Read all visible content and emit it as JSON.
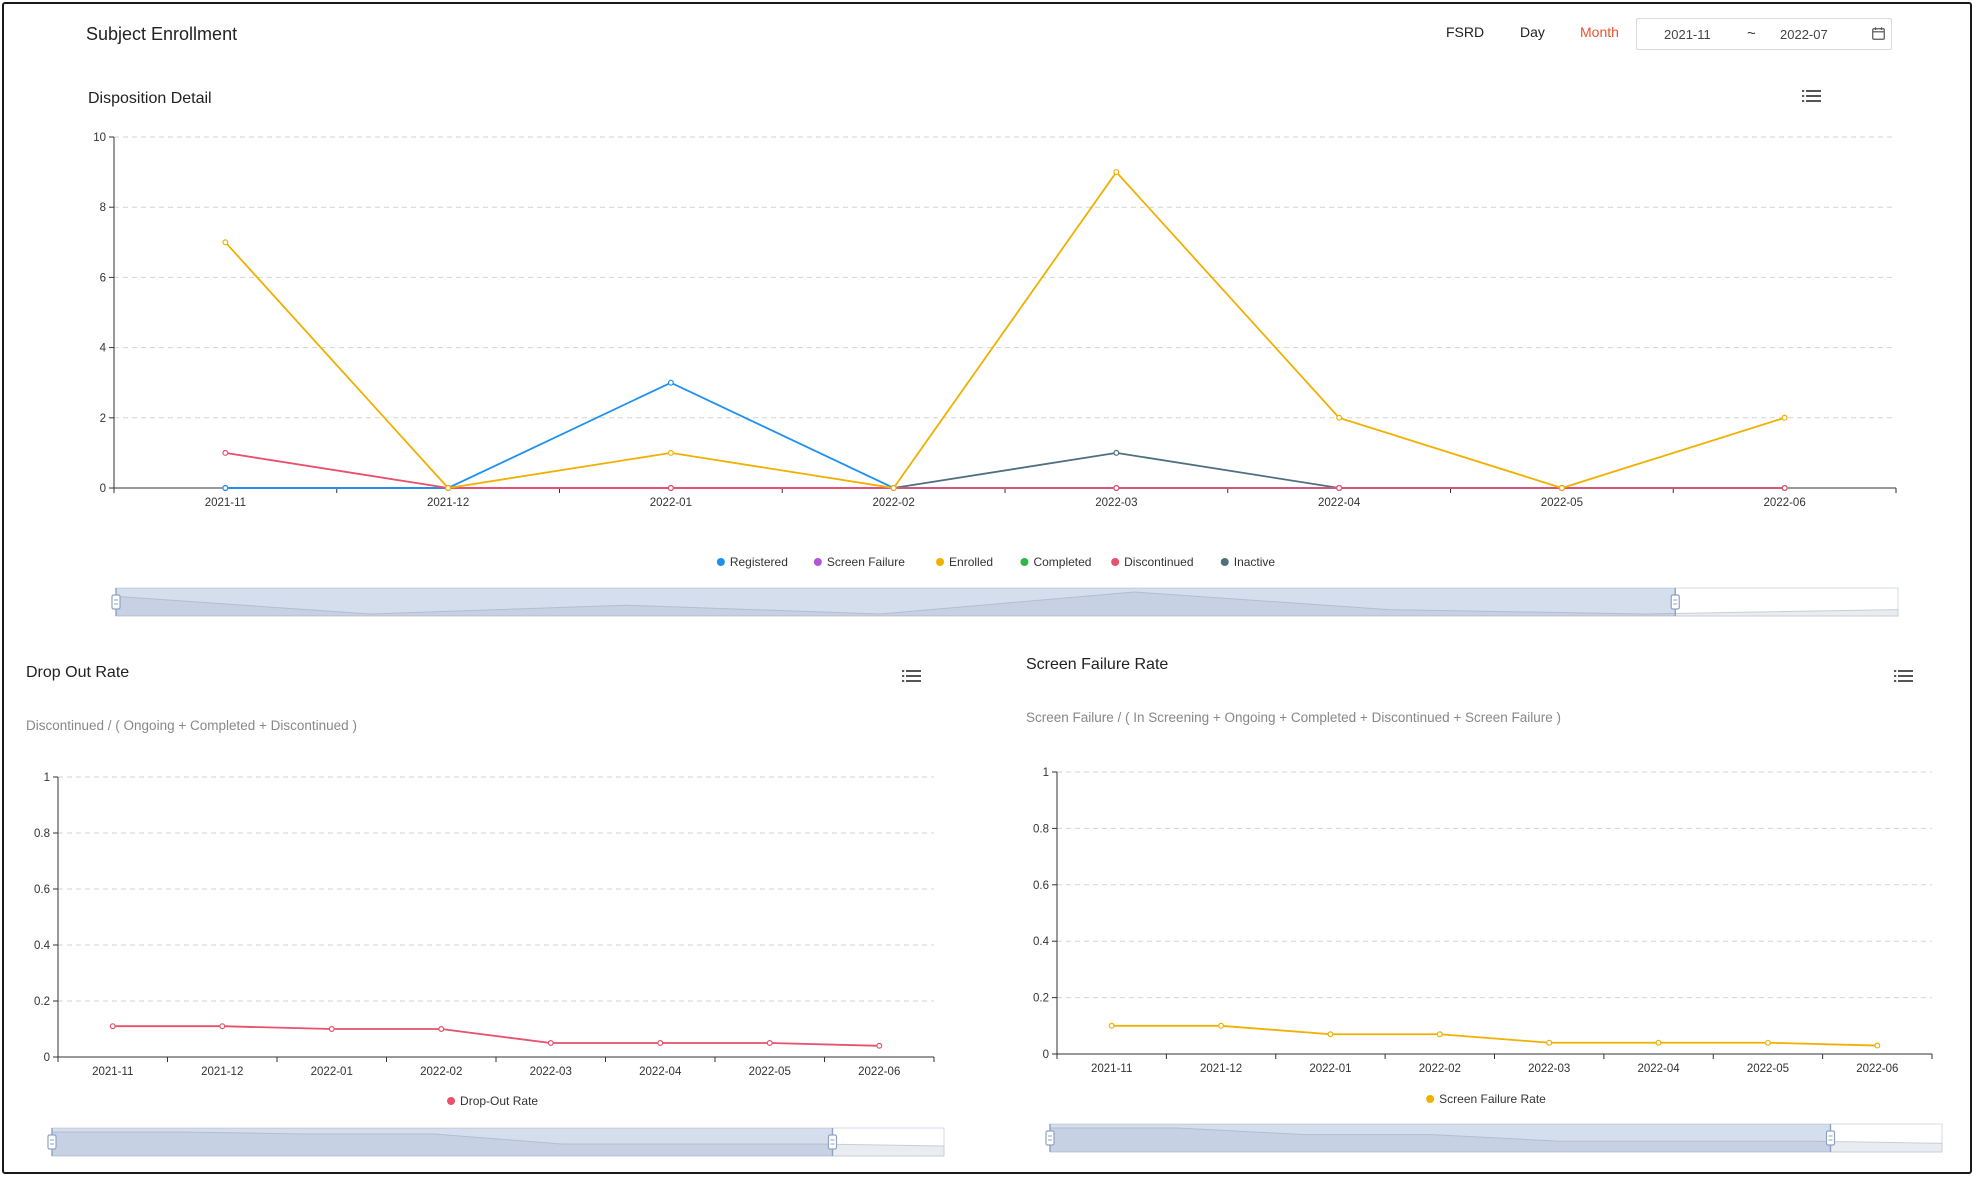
{
  "header": {
    "title": "Subject Enrollment",
    "fsrd_label": "FSRD",
    "day_label": "Day",
    "month_label": "Month",
    "date_from": "2021-11",
    "date_separator": "~",
    "date_to": "2022-07"
  },
  "colors": {
    "accent": "#e8542e",
    "registered": "#1e90f0",
    "screen_failure": "#b455d6",
    "enrolled": "#f0b000",
    "completed": "#2eb84a",
    "discontinued": "#e8506c",
    "inactive": "#4f6f80"
  },
  "disposition": {
    "title": "Disposition Detail"
  },
  "dropout": {
    "title": "Drop Out Rate",
    "formula": "Discontinued / ( Ongoing + Completed + Discontinued )"
  },
  "screen_failure": {
    "title": "Screen Failure Rate",
    "formula": "Screen Failure / ( In Screening + Ongoing + Completed + Discontinued + Screen Failure )"
  },
  "chart_data": [
    {
      "type": "line",
      "categories": [
        "2021-11",
        "2021-12",
        "2022-01",
        "2022-02",
        "2022-03",
        "2022-04",
        "2022-05",
        "2022-06"
      ],
      "ylim": [
        0,
        10
      ],
      "yticks": [
        "0",
        "2",
        "4",
        "6",
        "8",
        "10"
      ],
      "grid": true,
      "legend_position": "bottom",
      "series": [
        {
          "name": "Registered",
          "values": [
            0,
            0,
            3,
            0,
            0,
            0,
            0,
            0
          ]
        },
        {
          "name": "Screen Failure",
          "values": [
            0,
            0,
            0,
            0,
            0,
            0,
            0,
            0
          ]
        },
        {
          "name": "Enrolled",
          "values": [
            7,
            0,
            1,
            0,
            9,
            2,
            0,
            2
          ]
        },
        {
          "name": "Completed",
          "values": [
            0,
            0,
            0,
            0,
            0,
            0,
            0,
            0
          ]
        },
        {
          "name": "Discontinued",
          "values": [
            1,
            0,
            0,
            0,
            0,
            0,
            0,
            0
          ]
        },
        {
          "name": "Inactive",
          "values": [
            0,
            0,
            0,
            0,
            1,
            0,
            0,
            0
          ]
        }
      ],
      "zoom_range": [
        0,
        0.875
      ]
    },
    {
      "type": "line",
      "categories": [
        "2021-11",
        "2021-12",
        "2022-01",
        "2022-02",
        "2022-03",
        "2022-04",
        "2022-05",
        "2022-06"
      ],
      "ylim": [
        0,
        1
      ],
      "yticks": [
        "0",
        "0.2",
        "0.4",
        "0.6",
        "0.8",
        "1"
      ],
      "grid": true,
      "legend_position": "bottom",
      "series": [
        {
          "name": "Drop-Out Rate",
          "values": [
            0.11,
            0.11,
            0.1,
            0.1,
            0.05,
            0.05,
            0.05,
            0.04
          ]
        }
      ],
      "zoom_range": [
        0,
        0.875
      ]
    },
    {
      "type": "line",
      "categories": [
        "2021-11",
        "2021-12",
        "2022-01",
        "2022-02",
        "2022-03",
        "2022-04",
        "2022-05",
        "2022-06"
      ],
      "ylim": [
        0,
        1
      ],
      "yticks": [
        "0",
        "0.2",
        "0.4",
        "0.6",
        "0.8",
        "1"
      ],
      "grid": true,
      "legend_position": "bottom",
      "series": [
        {
          "name": "Screen Failure Rate",
          "values": [
            0.1,
            0.1,
            0.07,
            0.07,
            0.04,
            0.04,
            0.04,
            0.03
          ]
        }
      ],
      "zoom_range": [
        0,
        0.875
      ]
    }
  ]
}
